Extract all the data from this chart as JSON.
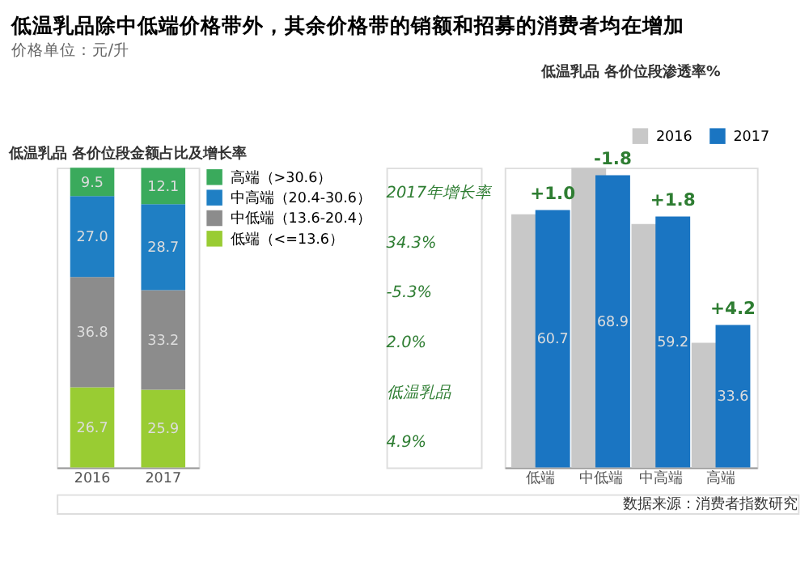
{
  "chart_data": [
    {
      "type": "bar",
      "title": "低温乳品除中低端价格带外，其余价格带的销额和招募的消费者均在增加",
      "subtitle": "低温乳品 各价位段金额占比及增长率",
      "categories": [
        "2016",
        "2017"
      ],
      "stacked": true,
      "legend": "right",
      "series": [
        {
          "name": "低端（<=13.6）",
          "color": "#99cc33",
          "values": [
            26.7,
            25.9
          ],
          "value_labels": [
            "26.7",
            "25.9"
          ]
        },
        {
          "name": "中低端（13.6-20.4）",
          "color": "#8c8c8c",
          "values": [
            36.8,
            33.2
          ],
          "value_labels": [
            "36.8",
            "33.2"
          ]
        },
        {
          "name": "中高端（20.4-30.6）",
          "color": "#1f7fc4",
          "values": [
            27.0,
            28.7
          ],
          "value_labels": [
            "27.0",
            "28.7"
          ]
        },
        {
          "name": "高端（>30.6）",
          "color": "#3aaa5c",
          "values": [
            9.5,
            12.1
          ],
          "value_labels": [
            "9.5",
            "12.1"
          ]
        }
      ],
      "annotations": [
        "价格单位：元/升",
        "2017年增长率",
        "34.3%",
        "-5.3%",
        "2.0%",
        "低温乳品",
        "4.9%",
        "数据来源：消费者指数研究"
      ]
    },
    {
      "type": "bar",
      "title": "低温乳品 各价位段渗透率%",
      "categories": [
        "低端",
        "中低端",
        "中高端",
        "高端"
      ],
      "legend": "top right",
      "series": [
        {
          "name": "2016",
          "color": "#c8c8c8",
          "values": [
            59.7,
            70.7,
            57.4,
            29.4
          ]
        },
        {
          "name": "2017",
          "color": "#1a75c2",
          "values": [
            60.7,
            68.9,
            59.2,
            33.6
          ],
          "value_labels": [
            "60.7",
            "68.9",
            "59.2",
            "33.6"
          ]
        }
      ],
      "annotations": [
        {
          "text": "+1.0",
          "x": "低端",
          "y": 60.7
        },
        {
          "text": "-1.8",
          "x": "中低端",
          "y": 68.9
        },
        {
          "text": "+1.8",
          "x": "中高端",
          "y": 59.2
        },
        {
          "text": "+4.2",
          "x": "高端",
          "y": 33.6
        }
      ]
    }
  ]
}
